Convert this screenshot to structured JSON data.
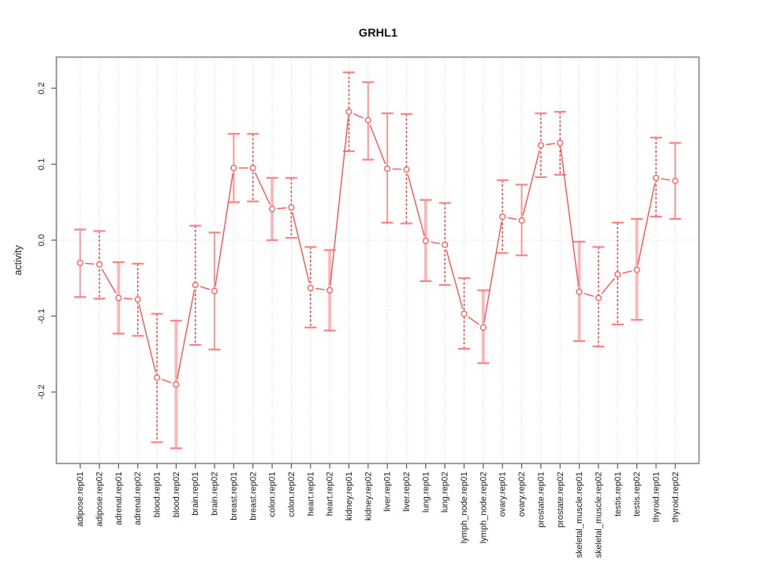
{
  "window": {
    "background": "#ffffff"
  },
  "chart_data": {
    "type": "line",
    "title": "GRHL1",
    "xlabel": "",
    "ylabel": "activity",
    "legend": "none",
    "grid": "dotted vertical gridline per category plus dotted horizontal line at y=0",
    "categories": [
      "adipose.rep01",
      "adipose.rep02",
      "adrenal.rep01",
      "adrenal.rep02",
      "blood.rep01",
      "blood.rep02",
      "brain.rep01",
      "brain.rep02",
      "breast.rep01",
      "breast.rep02",
      "colon.rep01",
      "colon.rep02",
      "heart.rep01",
      "heart.rep02",
      "kidney.rep01",
      "kidney.rep02",
      "liver.rep01",
      "liver.rep02",
      "lung.rep01",
      "lung.rep02",
      "lymph_node.rep01",
      "lymph_node.rep02",
      "ovary.rep01",
      "ovary.rep02",
      "prostate.rep01",
      "prostate.rep02",
      "skeletal_muscle.rep01",
      "skeletal_muscle.rep02",
      "testis.rep01",
      "testis.rep02",
      "thyroid.rep01",
      "thyroid.rep02"
    ],
    "series": [
      {
        "name": "activity",
        "values": [
          -0.03,
          -0.032,
          -0.076,
          -0.078,
          -0.181,
          -0.19,
          -0.059,
          -0.067,
          0.095,
          0.095,
          0.041,
          0.043,
          -0.063,
          -0.066,
          0.169,
          0.158,
          0.094,
          0.093,
          -0.001,
          -0.006,
          -0.097,
          -0.115,
          0.031,
          0.026,
          0.125,
          0.128,
          -0.068,
          -0.076,
          -0.045,
          -0.039,
          0.082,
          0.078
        ],
        "error_upper": [
          0.014,
          0.012,
          -0.029,
          -0.031,
          -0.097,
          -0.106,
          0.019,
          0.01,
          0.14,
          0.14,
          0.082,
          0.082,
          -0.009,
          -0.013,
          0.221,
          0.208,
          0.167,
          0.166,
          0.053,
          0.049,
          -0.05,
          -0.066,
          0.079,
          0.073,
          0.167,
          0.169,
          -0.002,
          -0.009,
          0.023,
          0.028,
          0.135,
          0.128
        ],
        "error_lower": [
          -0.075,
          -0.077,
          -0.123,
          -0.126,
          -0.266,
          -0.274,
          -0.138,
          -0.144,
          0.05,
          0.051,
          0.0,
          0.003,
          -0.115,
          -0.119,
          0.117,
          0.106,
          0.023,
          0.022,
          -0.054,
          -0.059,
          -0.143,
          -0.162,
          -0.017,
          -0.02,
          0.083,
          0.086,
          -0.133,
          -0.14,
          -0.111,
          -0.105,
          0.031,
          0.028
        ]
      }
    ],
    "error_bar_styles": [
      "solid",
      "dashed",
      "thick",
      "dashed",
      "dashed",
      "thick",
      "dashed",
      "solid",
      "solid",
      "dashed",
      "thick",
      "dashed",
      "dashed",
      "thick",
      "dashed",
      "solid",
      "solid",
      "dashed",
      "thick",
      "dashed",
      "dashed",
      "thick",
      "dashed",
      "solid",
      "dashed",
      "dashed",
      "thick",
      "dashed",
      "dashed",
      "thick",
      "dashed",
      "solid"
    ],
    "yticks": [
      -0.2,
      -0.1,
      0.0,
      0.1,
      0.2
    ],
    "ytick_labels": [
      "-0.2",
      "-0.1",
      "0.0",
      "0.1",
      "0.2"
    ],
    "ylim": [
      -0.294,
      0.241
    ],
    "colors": {
      "point": "#ff5252",
      "line": "#ff5252",
      "error_cap": "#ff8080",
      "stem_dashed": "#ee4343",
      "stem_solid": "#ff9090",
      "stem_thick": "#ffb5b5",
      "grid": "#d9d9d9",
      "frame": "#898989",
      "tick": "#5a5a5a",
      "text": "#1a1a1a"
    }
  }
}
